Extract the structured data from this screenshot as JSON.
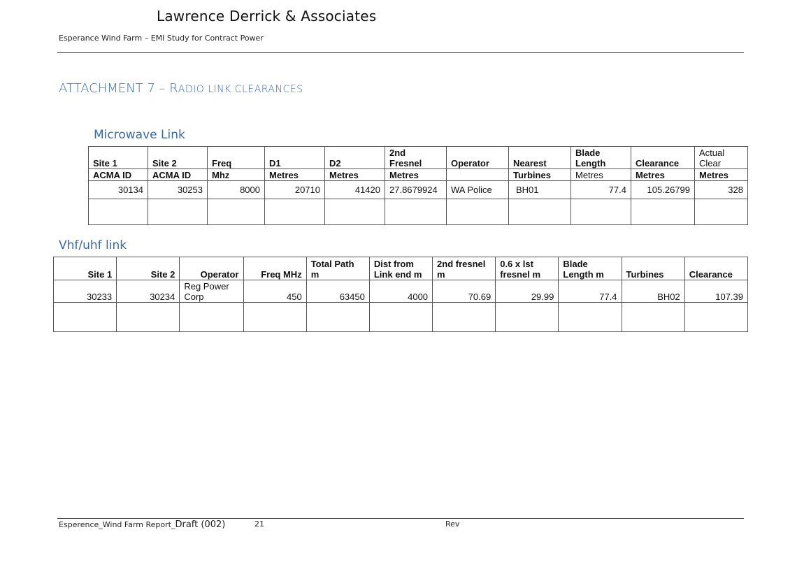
{
  "header": {
    "company": "Lawrence Derrick & Associates",
    "subtitle": "Esperance Wind Farm – EMI Study for Contract Power"
  },
  "attachment": {
    "prefix": "ATTACHMENT 7 – R",
    "rest": "ADIO LINK CLEARANCES"
  },
  "microwave": {
    "title": "Microwave Link",
    "header_top": [
      "",
      "",
      "",
      "",
      "",
      "2nd",
      "",
      "",
      "Blade",
      "",
      "Actual"
    ],
    "header_mid": [
      "Site 1",
      "Site 2",
      "Freq",
      "D1",
      "D2",
      "Fresnel",
      "Operator",
      "Nearest",
      "Length",
      "Clearance",
      "Clear"
    ],
    "header_units": [
      "ACMA ID",
      "ACMA ID",
      "Mhz",
      "Metres",
      "Metres",
      "Metres",
      "",
      "Turbines",
      "Metres",
      "Metres",
      "Metres"
    ],
    "row": [
      "30134",
      "30253",
      "8000",
      "20710",
      "41420",
      "27.8679924",
      "WA Police",
      "BH01",
      "77.4",
      "105.26799",
      "328"
    ]
  },
  "vhf": {
    "title": "Vhf/uhf link",
    "header_top": [
      "",
      "",
      "",
      "",
      "Total Path",
      "Dist from",
      "2nd fresnel",
      "0.6 x lst",
      "Blade",
      "",
      ""
    ],
    "header_bottom": [
      "Site 1",
      "Site 2",
      "Operator",
      "Freq MHz",
      "m",
      "Link end m",
      "m",
      "fresnel m",
      "Length m",
      "Turbines",
      "Clearance"
    ],
    "operator_line1": "Reg Power",
    "row": [
      "30233",
      "30234",
      "Corp",
      "450",
      "63450",
      "4000",
      "70.69",
      "29.99",
      "77.4",
      "BH02",
      "107.39"
    ]
  },
  "footer": {
    "file": "Esperence_Wind Farm Report_",
    "draft": "Draft (002)",
    "page": "21",
    "rev": "Rev"
  }
}
